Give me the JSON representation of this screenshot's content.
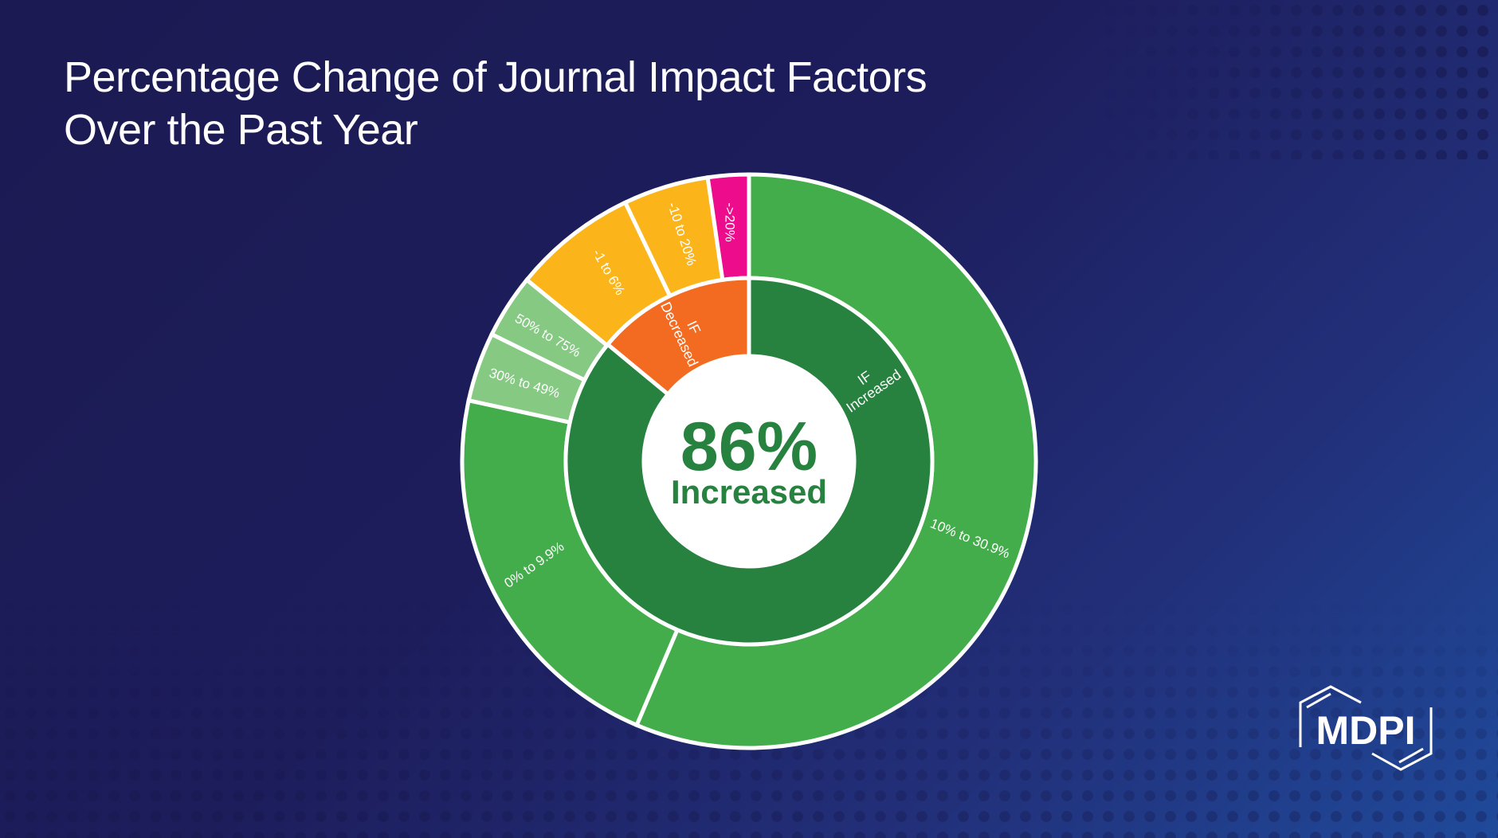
{
  "title_line1": "Percentage Change of Journal Impact Factors",
  "title_line2": "Over the Past Year",
  "logo_text": "MDPI",
  "chart_data": {
    "type": "sunburst",
    "title": "Percentage Change of Journal Impact Factors Over the Past Year",
    "center_value": "86%",
    "center_label": "Increased",
    "inner_ring": [
      {
        "label_line1": "IF",
        "label_line2": "Increased",
        "value": 86,
        "color": "#27813f"
      },
      {
        "label_line1": "IF",
        "label_line2": "Decreased",
        "value": 14,
        "color": "#f26b21"
      }
    ],
    "outer_ring": [
      {
        "label": "10% to 30.9%",
        "value": 56.4,
        "parent": "IF Increased",
        "color": "#42ad4a"
      },
      {
        "label": "0% to 9.9%",
        "value": 22.0,
        "parent": "IF Increased",
        "color": "#42ad4a"
      },
      {
        "label": "30% to 49%",
        "value": 3.9,
        "parent": "IF Increased",
        "color": "#86c983"
      },
      {
        "label": "50% to 75%",
        "value": 3.6,
        "parent": "IF Increased",
        "color": "#86c983"
      },
      {
        "label": "-1 to 6%",
        "value": 7.0,
        "parent": "IF Decreased",
        "color": "#fbb51a"
      },
      {
        "label": "-10 to 20%",
        "value": 4.8,
        "parent": "IF Decreased",
        "color": "#fbb51a"
      },
      {
        "label": "->20%",
        "value": 2.3,
        "parent": "IF Decreased",
        "color": "#ec0c8c"
      }
    ],
    "center_color": "#27813f"
  }
}
